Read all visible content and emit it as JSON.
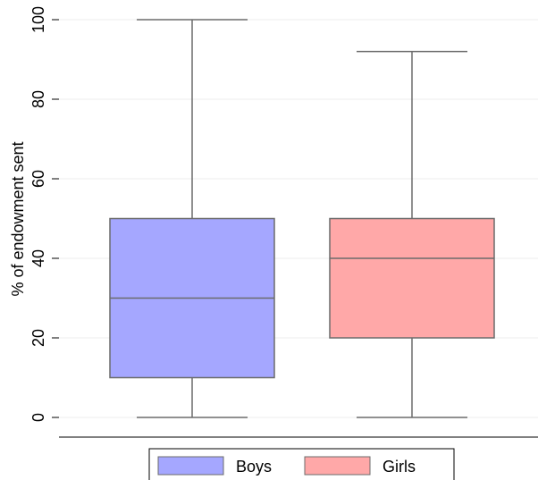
{
  "chart_data": {
    "type": "box",
    "ylabel": "% of endowment sent",
    "xlabel": "",
    "ylim": [
      0,
      100
    ],
    "yticks": [
      "0",
      "20",
      "40",
      "60",
      "80",
      "100"
    ],
    "grid": true,
    "legend_position": "bottom",
    "series": [
      {
        "name": "Boys",
        "color": "#a5a7ff",
        "min": 0,
        "q1": 10,
        "median": 30,
        "q3": 50,
        "max": 100
      },
      {
        "name": "Girls",
        "color": "#ffa8a8",
        "min": 0,
        "q1": 20,
        "median": 40,
        "q3": 50,
        "max": 92
      }
    ]
  },
  "colors": {
    "line": "#6b6b6b",
    "grid": "#ececec",
    "axis": "#000000"
  }
}
